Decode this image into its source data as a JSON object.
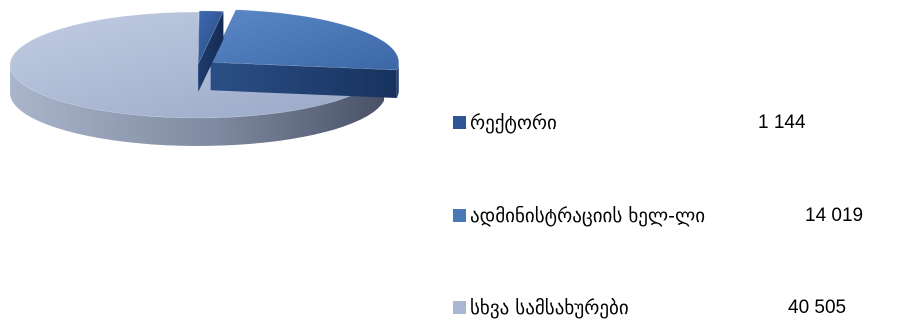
{
  "chart_data": {
    "type": "pie",
    "style": "3d-exploded",
    "title": "",
    "categories": [
      "რექტორი",
      "ადმინისტრაციის ხელ-ლი",
      "სხვა სამსახურები"
    ],
    "values": [
      1144,
      14019,
      40505
    ],
    "value_labels": [
      "1 144",
      "14 019",
      "40 505"
    ],
    "colors": [
      "#2f5597",
      "#4a78b7",
      "#aab7d2"
    ],
    "legend_position": "right"
  }
}
